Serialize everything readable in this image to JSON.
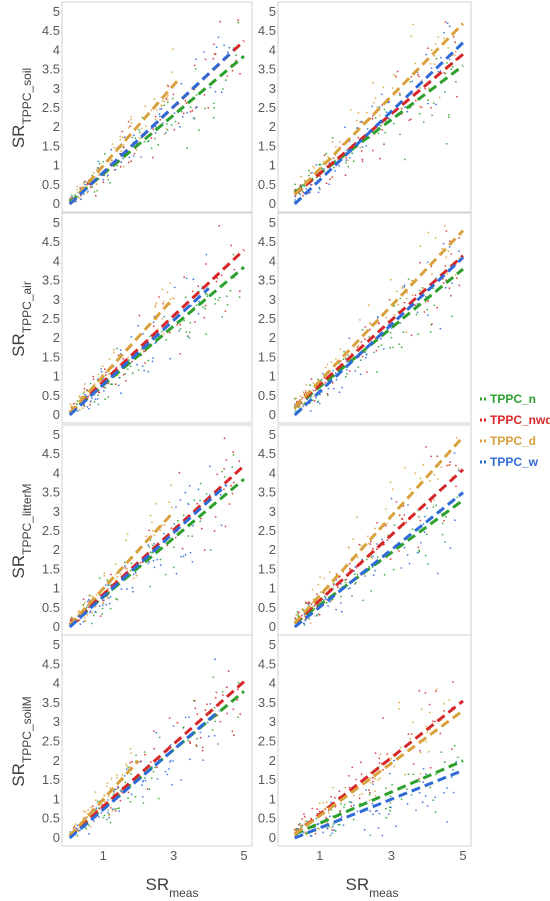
{
  "legend": {
    "position": "right",
    "items": [
      {
        "label": "TPPC_n",
        "color": "#2ca02c"
      },
      {
        "label": "TPPC_nwd",
        "color": "#d62728"
      },
      {
        "label": "TPPC_d",
        "color": "#d9a13b"
      },
      {
        "label": "TPPC_w",
        "color": "#2f6bd8"
      }
    ]
  },
  "axes": {
    "x_label": {
      "main": "SR",
      "sub": "meas"
    },
    "x_ticks": [
      "1",
      "3",
      "5"
    ],
    "y_ticks": [
      "0",
      "0.5",
      "1",
      "1.5",
      "2",
      "2.5",
      "3",
      "3.5",
      "4",
      "4.5",
      "5"
    ],
    "rows": [
      {
        "ylabel_main": "SR",
        "ylabel_sub": "TPPC_soil"
      },
      {
        "ylabel_main": "SR",
        "ylabel_sub": "TPPC_air"
      },
      {
        "ylabel_main": "SR",
        "ylabel_sub": "TPPC_litterM"
      },
      {
        "ylabel_main": "SR",
        "ylabel_sub": "TPPC_soilM"
      }
    ]
  },
  "chart_data": {
    "type": "scatter",
    "grid": false,
    "xlim": [
      0,
      5
    ],
    "ylim": [
      0,
      5
    ],
    "x_ticks": [
      1,
      3,
      5
    ],
    "y_ticks": [
      0,
      0.5,
      1,
      1.5,
      2,
      2.5,
      3,
      3.5,
      4,
      4.5,
      5
    ],
    "xlabel": "SR_meas",
    "series_names": [
      "TPPC_n",
      "TPPC_nwd",
      "TPPC_d",
      "TPPC_w"
    ],
    "panels": [
      {
        "row": 1,
        "col": 1,
        "ylabel": "SR_TPPC_soil",
        "fits": [
          {
            "series": "TPPC_n",
            "x": [
              0.05,
              5
            ],
            "y": [
              0.05,
              3.85
            ]
          },
          {
            "series": "TPPC_nwd",
            "x": [
              0.05,
              5
            ],
            "y": [
              0.0,
              4.25
            ]
          },
          {
            "series": "TPPC_d",
            "x": [
              0.05,
              3.1
            ],
            "y": [
              0.0,
              3.2
            ]
          },
          {
            "series": "TPPC_w",
            "x": [
              0.05,
              4.7
            ],
            "y": [
              0.0,
              4.0
            ]
          }
        ]
      },
      {
        "row": 1,
        "col": 2,
        "ylabel": "SR_TPPC_soil",
        "fits": [
          {
            "series": "TPPC_n",
            "x": [
              0.3,
              5
            ],
            "y": [
              0.3,
              3.6
            ]
          },
          {
            "series": "TPPC_nwd",
            "x": [
              0.3,
              5
            ],
            "y": [
              0.25,
              3.9
            ]
          },
          {
            "series": "TPPC_d",
            "x": [
              0.3,
              5
            ],
            "y": [
              0.25,
              4.7
            ]
          },
          {
            "series": "TPPC_w",
            "x": [
              0.3,
              5
            ],
            "y": [
              0.0,
              4.2
            ]
          }
        ]
      },
      {
        "row": 2,
        "col": 1,
        "ylabel": "SR_TPPC_air",
        "fits": [
          {
            "series": "TPPC_n",
            "x": [
              0.05,
              5
            ],
            "y": [
              0.05,
              3.85
            ]
          },
          {
            "series": "TPPC_nwd",
            "x": [
              0.05,
              5
            ],
            "y": [
              0.05,
              4.3
            ]
          },
          {
            "series": "TPPC_d",
            "x": [
              0.05,
              3.0
            ],
            "y": [
              0.05,
              3.05
            ]
          },
          {
            "series": "TPPC_w",
            "x": [
              0.05,
              4.0
            ],
            "y": [
              0.0,
              3.3
            ]
          }
        ]
      },
      {
        "row": 2,
        "col": 2,
        "ylabel": "SR_TPPC_air",
        "fits": [
          {
            "series": "TPPC_n",
            "x": [
              0.3,
              5
            ],
            "y": [
              0.2,
              3.8
            ]
          },
          {
            "series": "TPPC_nwd",
            "x": [
              0.3,
              5
            ],
            "y": [
              0.2,
              4.15
            ]
          },
          {
            "series": "TPPC_d",
            "x": [
              0.3,
              5
            ],
            "y": [
              0.2,
              4.8
            ]
          },
          {
            "series": "TPPC_w",
            "x": [
              0.3,
              5
            ],
            "y": [
              0.0,
              4.1
            ]
          }
        ]
      },
      {
        "row": 3,
        "col": 1,
        "ylabel": "SR_TPPC_litterM",
        "fits": [
          {
            "series": "TPPC_n",
            "x": [
              0.05,
              5
            ],
            "y": [
              0.05,
              3.85
            ]
          },
          {
            "series": "TPPC_nwd",
            "x": [
              0.05,
              5
            ],
            "y": [
              0.05,
              4.2
            ]
          },
          {
            "series": "TPPC_d",
            "x": [
              0.05,
              3.0
            ],
            "y": [
              0.05,
              3.0
            ]
          },
          {
            "series": "TPPC_w",
            "x": [
              0.05,
              4.5
            ],
            "y": [
              0.0,
              3.7
            ]
          }
        ]
      },
      {
        "row": 3,
        "col": 2,
        "ylabel": "SR_TPPC_litterM",
        "fits": [
          {
            "series": "TPPC_n",
            "x": [
              0.3,
              5
            ],
            "y": [
              0.1,
              3.3
            ]
          },
          {
            "series": "TPPC_nwd",
            "x": [
              0.3,
              5
            ],
            "y": [
              0.1,
              4.1
            ]
          },
          {
            "series": "TPPC_d",
            "x": [
              0.3,
              5
            ],
            "y": [
              0.1,
              4.95
            ]
          },
          {
            "series": "TPPC_w",
            "x": [
              0.3,
              5
            ],
            "y": [
              0.0,
              3.5
            ]
          }
        ]
      },
      {
        "row": 4,
        "col": 1,
        "ylabel": "SR_TPPC_soilM",
        "fits": [
          {
            "series": "TPPC_n",
            "x": [
              0.05,
              5
            ],
            "y": [
              0.05,
              3.8
            ]
          },
          {
            "series": "TPPC_nwd",
            "x": [
              0.05,
              5
            ],
            "y": [
              0.05,
              4.05
            ]
          },
          {
            "series": "TPPC_d",
            "x": [
              0.05,
              2.0
            ],
            "y": [
              0.05,
              2.0
            ]
          },
          {
            "series": "TPPC_w",
            "x": [
              0.05,
              4.3
            ],
            "y": [
              0.0,
              3.3
            ]
          }
        ]
      },
      {
        "row": 4,
        "col": 2,
        "ylabel": "SR_TPPC_soilM",
        "fits": [
          {
            "series": "TPPC_n",
            "x": [
              0.3,
              5
            ],
            "y": [
              0.1,
              2.0
            ]
          },
          {
            "series": "TPPC_nwd",
            "x": [
              0.3,
              5
            ],
            "y": [
              0.1,
              3.55
            ]
          },
          {
            "series": "TPPC_d",
            "x": [
              0.3,
              5
            ],
            "y": [
              0.1,
              3.3
            ]
          },
          {
            "series": "TPPC_w",
            "x": [
              0.3,
              5
            ],
            "y": [
              0.0,
              1.75
            ]
          }
        ]
      }
    ]
  }
}
